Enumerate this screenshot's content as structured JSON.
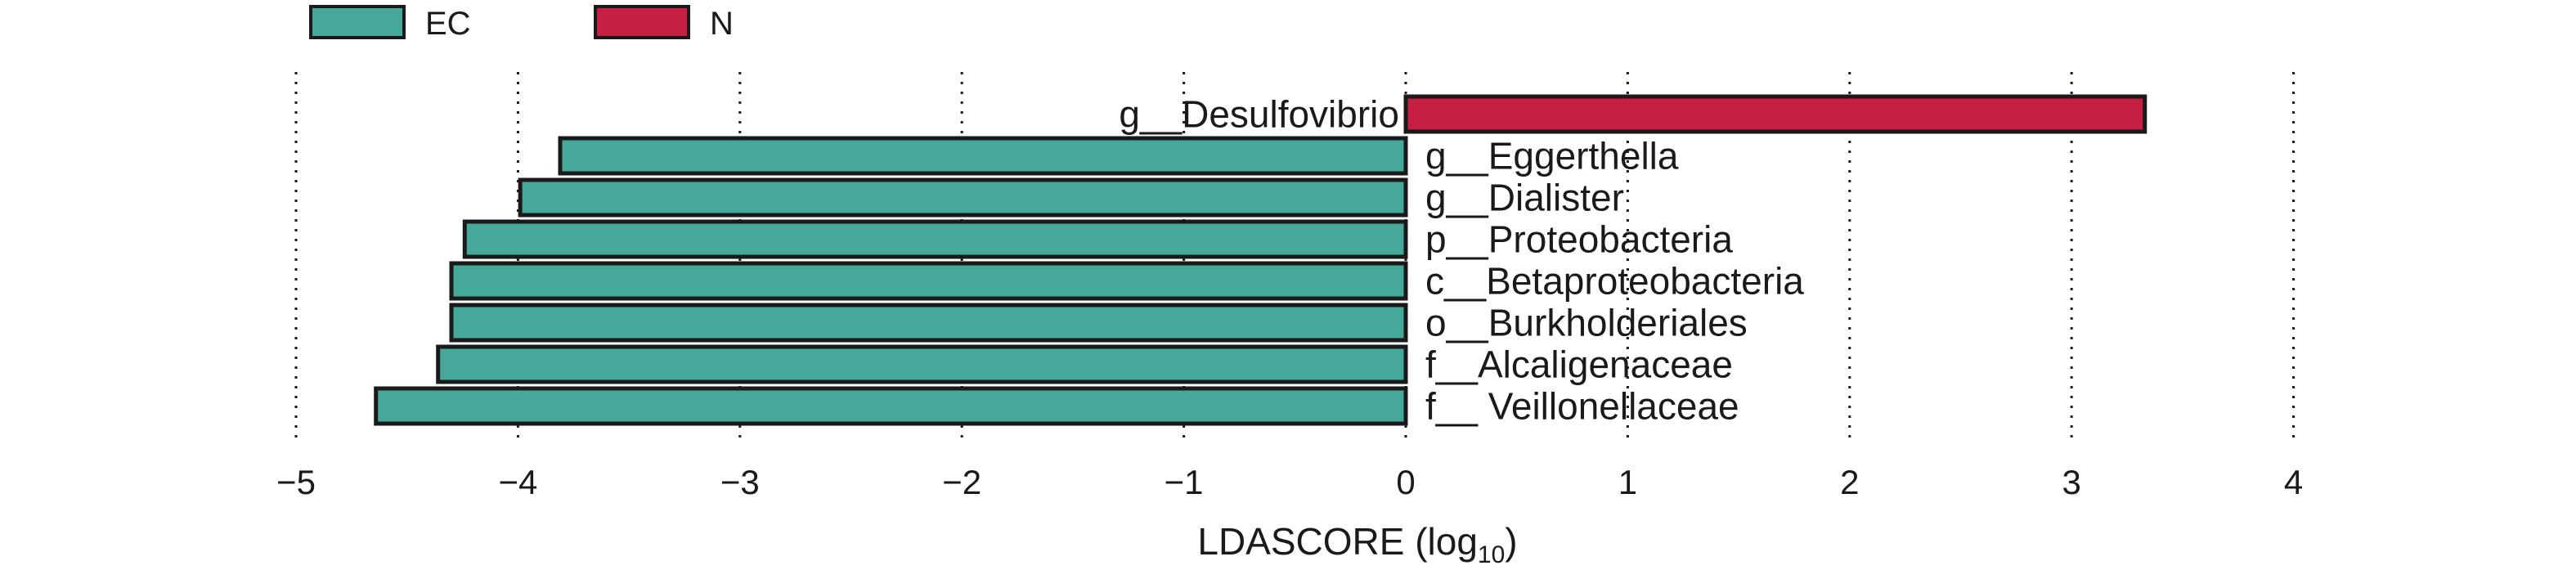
{
  "chart_data": {
    "type": "bar",
    "orientation": "horizontal",
    "legend": {
      "position": "top-left",
      "entries": [
        {
          "name": "EC",
          "color": "#46a898"
        },
        {
          "name": "N",
          "color": "#c51f43"
        }
      ]
    },
    "xlabel": {
      "main": "LDASCORE (log",
      "subscript": "10",
      "suffix": ")"
    },
    "xlim": [
      -5,
      4
    ],
    "xticks": [
      -5,
      -4,
      -3,
      -2,
      -1,
      0,
      1,
      2,
      3,
      4
    ],
    "xtick_labels": [
      "−5",
      "−4",
      "−3",
      "−2",
      "−1",
      "0",
      "1",
      "2",
      "3",
      "4"
    ],
    "grid": "vertical-dotted",
    "categories": [
      "g__Desulfovibrio",
      "g__Eggerthella",
      "g__Dialister",
      "p__Proteobacteria",
      "c__Betaproteobacteria",
      "o__Burkholderiales",
      "f__Alcaligenaceae",
      "f__ Veillonellaceae"
    ],
    "values": [
      3.33,
      -3.81,
      -3.99,
      -4.24,
      -4.3,
      -4.3,
      -4.36,
      -4.64
    ],
    "groups": [
      "N",
      "EC",
      "EC",
      "EC",
      "EC",
      "EC",
      "EC",
      "EC"
    ]
  }
}
